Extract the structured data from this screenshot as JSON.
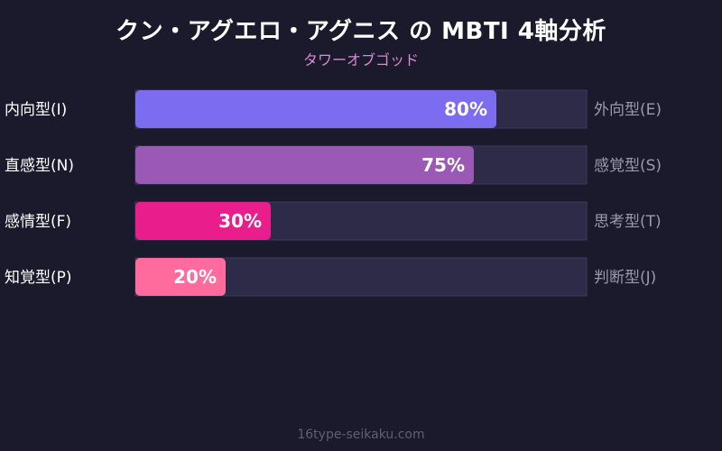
{
  "title": "クン・アグエロ・アグニス の MBTI 4軸分析",
  "subtitle": "タワーオブゴッド",
  "footer": "16type-seikaku.com",
  "colors": {
    "background": "#1b1a2d",
    "track": "#2d2b48",
    "track_border": "#3d3b5c",
    "left_label": "#ffffff",
    "right_label": "#9a99ad",
    "subtitle": "#d98ad0"
  },
  "chart_data": {
    "type": "bar",
    "orientation": "horizontal",
    "xlim": [
      0,
      100
    ],
    "unit": "%",
    "rows": [
      {
        "left_label": "内向型(I)",
        "right_label": "外向型(E)",
        "value": 80,
        "value_label": "80%",
        "color": "#7b6cf0"
      },
      {
        "left_label": "直感型(N)",
        "right_label": "感覚型(S)",
        "value": 75,
        "value_label": "75%",
        "color": "#9b59b6"
      },
      {
        "left_label": "感情型(F)",
        "right_label": "思考型(T)",
        "value": 30,
        "value_label": "30%",
        "color": "#e91e8c"
      },
      {
        "left_label": "知覚型(P)",
        "right_label": "判断型(J)",
        "value": 20,
        "value_label": "20%",
        "color": "#ff6b9d"
      }
    ]
  }
}
